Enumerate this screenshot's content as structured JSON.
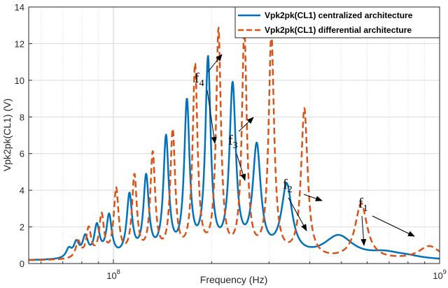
{
  "chart_data": {
    "type": "line",
    "title": "",
    "xlabel": "Frequency (Hz)",
    "ylabel": "Vpk2pk(CL1) (V)",
    "xscale": "log",
    "xlim": [
      55000000.0,
      1000000000.0
    ],
    "ylim": [
      0,
      14
    ],
    "grid": true,
    "legend_position": "top-right",
    "yticks": [
      "0",
      "2",
      "4",
      "6",
      "8",
      "10",
      "12",
      "14"
    ],
    "xticks": [
      {
        "base": "10",
        "exp": "8",
        "value": 100000000.0
      },
      {
        "base": "10",
        "exp": "9",
        "value": 1000000000.0
      }
    ],
    "series": [
      {
        "name": "Vpk2pk(CL1) centralized architecture",
        "color": "#0072BD",
        "style": "solid",
        "baseline": 0.15,
        "peaks": [
          {
            "f": 73000000.0,
            "a": 0.5,
            "w": 0.01
          },
          {
            "f": 77000000.0,
            "a": 0.8,
            "w": 0.01
          },
          {
            "f": 82000000.0,
            "a": 1.1,
            "w": 0.01
          },
          {
            "f": 89000000.0,
            "a": 1.7,
            "w": 0.01
          },
          {
            "f": 97000000.0,
            "a": 2.25,
            "w": 0.01
          },
          {
            "f": 112000000.0,
            "a": 3.35,
            "w": 0.01
          },
          {
            "f": 126000000.0,
            "a": 4.3,
            "w": 0.01
          },
          {
            "f": 145000000.0,
            "a": 6.4,
            "w": 0.01
          },
          {
            "f": 168000000.0,
            "a": 8.3,
            "w": 0.01
          },
          {
            "f": 195000000.0,
            "a": 10.6,
            "w": 0.01
          },
          {
            "f": 232000000.0,
            "a": 9.2,
            "w": 0.012
          },
          {
            "f": 275000000.0,
            "a": 5.9,
            "w": 0.015
          },
          {
            "f": 340000000.0,
            "a": 3.85,
            "w": 0.02
          },
          {
            "f": 490000000.0,
            "a": 1.25,
            "w": 0.055
          },
          {
            "f": 680000000.0,
            "a": 0.32,
            "w": 0.06
          },
          {
            "f": 800000000.0,
            "a": 0.12,
            "w": 0.05
          }
        ]
      },
      {
        "name": "Vpk2pk(CL1) differential architecture",
        "color": "#D95319",
        "style": "dashed",
        "baseline": 0.15,
        "peaks": [
          {
            "f": 78000000.0,
            "a": 0.9,
            "w": 0.009
          },
          {
            "f": 84000000.0,
            "a": 1.6,
            "w": 0.009
          },
          {
            "f": 92000000.0,
            "a": 2.3,
            "w": 0.009
          },
          {
            "f": 102000000.0,
            "a": 3.7,
            "w": 0.009
          },
          {
            "f": 116000000.0,
            "a": 4.4,
            "w": 0.009
          },
          {
            "f": 132000000.0,
            "a": 5.6,
            "w": 0.009
          },
          {
            "f": 152000000.0,
            "a": 6.8,
            "w": 0.009
          },
          {
            "f": 178000000.0,
            "a": 10.4,
            "w": 0.009
          },
          {
            "f": 210000000.0,
            "a": 12.3,
            "w": 0.009
          },
          {
            "f": 252000000.0,
            "a": 12.3,
            "w": 0.009
          },
          {
            "f": 305000000.0,
            "a": 12.1,
            "w": 0.01
          },
          {
            "f": 385000000.0,
            "a": 8.1,
            "w": 0.012
          },
          {
            "f": 575000000.0,
            "a": 3.05,
            "w": 0.022
          },
          {
            "f": 930000000.0,
            "a": 0.75,
            "w": 0.04
          }
        ]
      }
    ],
    "annotations": [
      {
        "label": "f",
        "sub": "4"
      },
      {
        "label": "f",
        "sub": "3"
      },
      {
        "label": "f",
        "sub": "2"
      },
      {
        "label": "f",
        "sub": "1"
      }
    ]
  }
}
